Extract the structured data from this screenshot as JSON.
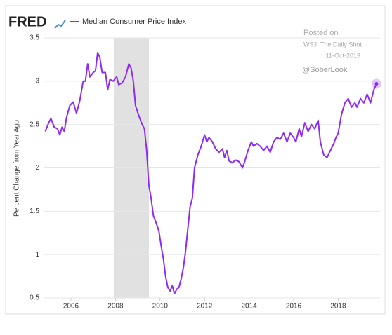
{
  "brand": "FRED",
  "chart_data": {
    "type": "line",
    "ylabel": "Percent Change from Year Ago",
    "annotations": [
      "Posted on",
      "WSJ: The Daily Shot",
      "11-Oct-2019",
      "@SoberLook"
    ],
    "shaded_periods": [
      [
        2007.92,
        2009.5
      ]
    ],
    "xlim": [
      2004.77,
      2019.88
    ],
    "xticks": [
      2006,
      2008,
      2010,
      2012,
      2014,
      2016,
      2018
    ],
    "ylim": [
      0.5,
      3.5
    ],
    "yticks": [
      0.5,
      1.0,
      1.5,
      2.0,
      2.5,
      3.0,
      3.5
    ],
    "grid": true,
    "highlight_last": true,
    "x": [
      2004.85,
      2005.0,
      2005.1,
      2005.25,
      2005.4,
      2005.5,
      2005.6,
      2005.7,
      2005.8,
      2005.95,
      2006.1,
      2006.25,
      2006.4,
      2006.55,
      2006.65,
      2006.75,
      2006.85,
      2007.0,
      2007.1,
      2007.2,
      2007.3,
      2007.4,
      2007.55,
      2007.65,
      2007.75,
      2007.9,
      2008.05,
      2008.15,
      2008.3,
      2008.45,
      2008.6,
      2008.7,
      2008.8,
      2008.9,
      2009.05,
      2009.2,
      2009.3,
      2009.4,
      2009.5,
      2009.6,
      2009.7,
      2009.85,
      2009.95,
      2010.05,
      2010.15,
      2010.25,
      2010.35,
      2010.45,
      2010.55,
      2010.65,
      2010.75,
      2010.85,
      2010.95,
      2011.05,
      2011.15,
      2011.25,
      2011.35,
      2011.45,
      2011.55,
      2011.7,
      2011.85,
      2012.0,
      2012.1,
      2012.2,
      2012.35,
      2012.5,
      2012.65,
      2012.8,
      2012.9,
      2013.0,
      2013.1,
      2013.25,
      2013.4,
      2013.55,
      2013.7,
      2013.8,
      2013.95,
      2014.1,
      2014.2,
      2014.35,
      2014.5,
      2014.65,
      2014.8,
      2014.95,
      2015.1,
      2015.25,
      2015.4,
      2015.55,
      2015.7,
      2015.85,
      2016.0,
      2016.1,
      2016.25,
      2016.35,
      2016.5,
      2016.65,
      2016.8,
      2016.95,
      2017.1,
      2017.2,
      2017.35,
      2017.5,
      2017.65,
      2017.8,
      2017.9,
      2018.0,
      2018.15,
      2018.3,
      2018.45,
      2018.6,
      2018.75,
      2018.85,
      2019.0,
      2019.15,
      2019.3,
      2019.45,
      2019.6,
      2019.72
    ],
    "series": [
      {
        "name": "Median Consumer Price Index",
        "color": "#8f2bf0",
        "values": [
          2.42,
          2.52,
          2.57,
          2.47,
          2.45,
          2.38,
          2.47,
          2.42,
          2.58,
          2.72,
          2.76,
          2.63,
          2.78,
          3.0,
          3.0,
          3.2,
          3.05,
          3.1,
          3.12,
          3.33,
          3.27,
          3.1,
          3.1,
          2.9,
          3.02,
          3.0,
          3.05,
          2.96,
          2.98,
          3.05,
          3.2,
          3.15,
          3.0,
          2.72,
          2.6,
          2.5,
          2.45,
          2.2,
          1.8,
          1.65,
          1.45,
          1.35,
          1.27,
          1.1,
          0.95,
          0.75,
          0.62,
          0.58,
          0.64,
          0.55,
          0.6,
          0.62,
          0.72,
          0.85,
          1.05,
          1.3,
          1.55,
          1.65,
          2.0,
          2.15,
          2.25,
          2.38,
          2.3,
          2.35,
          2.3,
          2.22,
          2.18,
          2.22,
          2.12,
          2.2,
          2.08,
          2.06,
          2.09,
          2.07,
          2.0,
          2.07,
          2.2,
          2.3,
          2.25,
          2.28,
          2.25,
          2.2,
          2.25,
          2.18,
          2.3,
          2.35,
          2.33,
          2.4,
          2.3,
          2.4,
          2.35,
          2.3,
          2.45,
          2.36,
          2.52,
          2.42,
          2.5,
          2.45,
          2.55,
          2.3,
          2.15,
          2.12,
          2.2,
          2.28,
          2.35,
          2.4,
          2.62,
          2.75,
          2.8,
          2.7,
          2.75,
          2.7,
          2.8,
          2.75,
          2.85,
          2.75,
          2.9,
          2.97
        ]
      }
    ]
  }
}
